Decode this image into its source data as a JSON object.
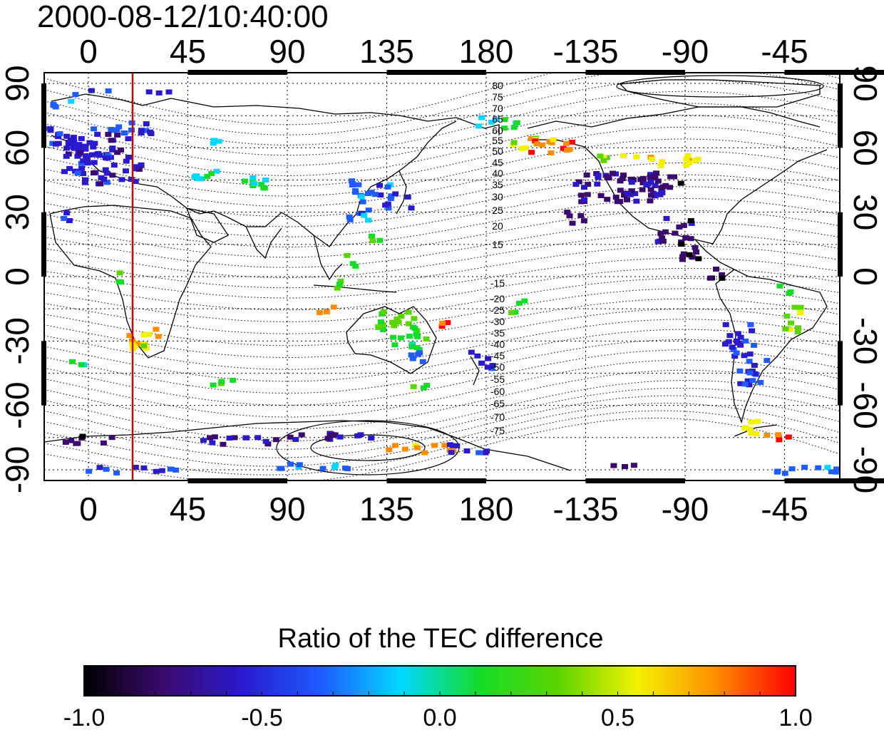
{
  "title": "2000-08-12/10:40:00",
  "map": {
    "lon_ticks": [
      "0",
      "45",
      "90",
      "135",
      "180",
      "-135",
      "-90",
      "-45"
    ],
    "lat_ticks": [
      "90",
      "60",
      "30",
      "0",
      "-30",
      "-60",
      "-90"
    ],
    "lon_range": [
      -20,
      340
    ],
    "lat_range": [
      -95,
      95
    ],
    "marker_longitude": 20,
    "marker_color": "#dd0000",
    "contour_labels": [
      "80",
      "75",
      "70",
      "65",
      "60",
      "55",
      "50",
      "45",
      "40",
      "35",
      "30",
      "25",
      "20",
      "15",
      "-15",
      "-20",
      "-25",
      "-30",
      "-35",
      "-40",
      "-45",
      "-50",
      "-55",
      "-60",
      "-65",
      "-70",
      "-75"
    ],
    "grid": true
  },
  "colorbar": {
    "title": "Ratio of the TEC difference",
    "ticks": [
      "-1.0",
      "-0.5",
      "0.0",
      "0.5",
      "1.0"
    ],
    "range": [
      -1.0,
      1.0
    ],
    "stops": [
      "#000000",
      "#3a0a6e",
      "#2a1acc",
      "#1e5cff",
      "#00d8ff",
      "#14dc28",
      "#5cd400",
      "#f2f200",
      "#ff8c00",
      "#ff0000"
    ]
  }
}
